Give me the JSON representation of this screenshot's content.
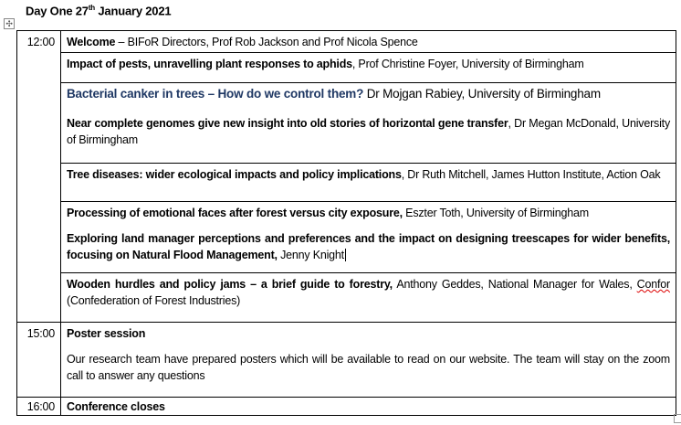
{
  "title": {
    "prefix": "Day One 27",
    "sup": "th",
    "suffix": " January 2021"
  },
  "icons": {
    "move_handle": "move-arrows-icon",
    "end_mark": "table-end-mark"
  },
  "rows": [
    {
      "time": "12:00",
      "items": [
        {
          "bold": "Welcome",
          "rest": " – BIFoR Directors, Prof Rob Jackson and Prof Nicola Spence"
        }
      ]
    },
    {
      "time": "",
      "items": [
        {
          "bold": "Impact of pests, unravelling plant responses to aphids",
          "rest": ", Prof Christine Foyer, University of Birmingham"
        }
      ]
    },
    {
      "time": "",
      "items": [
        {
          "bold": "Bacterial canker in trees – How do we control them?",
          "rest": " Dr Mojgan Rabiey, University of Birmingham"
        },
        {
          "bold": "Near complete genomes give new insight into old stories of horizontal gene transfer",
          "rest": ", Dr Megan McDonald, University of Birmingham"
        }
      ]
    },
    {
      "time": "",
      "items": [
        {
          "bold": "Tree diseases: wider ecological impacts and policy implications",
          "rest": ", Dr Ruth Mitchell, James Hutton Institute, Action Oak"
        }
      ]
    },
    {
      "time": "",
      "items": [
        {
          "bold": "Processing of emotional faces after forest versus city exposure,",
          "rest": " Eszter Toth, University of Birmingham"
        },
        {
          "bold": "Exploring land manager perceptions and preferences and the impact on designing treescapes for wider benefits, focusing on Natural Flood Management,",
          "rest": " Jenny Knight"
        }
      ]
    },
    {
      "time": "",
      "items": [
        {
          "bold": "Wooden hurdles and policy jams – a brief guide to forestry,",
          "rest": " Anthony Geddes, National Manager for Wales, ",
          "misspelled": "Confor",
          "rest2": " (Confederation of Forest Industries)"
        }
      ]
    },
    {
      "time": "15:00",
      "items": [
        {
          "bold": "Poster session",
          "rest": ""
        },
        {
          "bold": "",
          "rest": "Our research team have prepared posters which will be available to read on our website. The team will stay on the zoom call to answer any questions"
        }
      ]
    },
    {
      "time": "16:00",
      "items": [
        {
          "bold": "Conference closes",
          "rest": ""
        }
      ]
    }
  ],
  "colors": {
    "heading_blue": "#1f3864",
    "spelling_underline": "#d00000"
  }
}
